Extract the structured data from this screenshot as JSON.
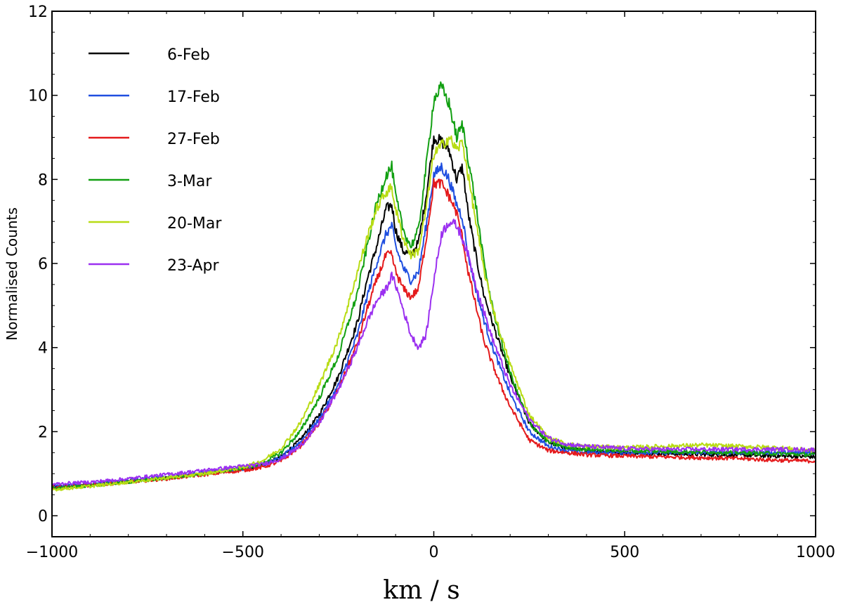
{
  "chart_data": {
    "type": "line",
    "title": "",
    "xlabel": "km / s",
    "ylabel": "Normalised Counts",
    "xlim": [
      -1000,
      1000
    ],
    "ylim": [
      -0.5,
      12
    ],
    "xticks": [
      -1000,
      -500,
      0,
      500,
      1000
    ],
    "xtick_labels": [
      "−1000",
      "−500",
      "0",
      "500",
      "1000"
    ],
    "yticks": [
      0,
      2,
      4,
      6,
      8,
      10,
      12
    ],
    "ytick_labels": [
      "0",
      "2",
      "4",
      "6",
      "8",
      "10",
      "12"
    ],
    "grid": false,
    "legend_position": "top-left",
    "x": [
      -1000,
      -900,
      -800,
      -700,
      -600,
      -500,
      -450,
      -400,
      -350,
      -300,
      -250,
      -200,
      -175,
      -150,
      -125,
      -110,
      -100,
      -80,
      -60,
      -40,
      -20,
      0,
      20,
      40,
      60,
      75,
      90,
      110,
      130,
      150,
      175,
      200,
      250,
      300,
      350,
      400,
      500,
      600,
      700,
      800,
      900,
      1000
    ],
    "series": [
      {
        "name": "6-Feb",
        "color": "#000000",
        "values": [
          0.68,
          0.73,
          0.82,
          0.9,
          1.0,
          1.12,
          1.2,
          1.4,
          1.8,
          2.4,
          3.3,
          4.6,
          5.6,
          6.4,
          7.3,
          7.4,
          6.8,
          6.3,
          6.2,
          6.5,
          7.6,
          9.0,
          8.9,
          8.7,
          8.0,
          8.3,
          7.2,
          6.2,
          5.3,
          4.7,
          4.0,
          3.3,
          2.2,
          1.75,
          1.6,
          1.55,
          1.5,
          1.48,
          1.46,
          1.44,
          1.42,
          1.4
        ]
      },
      {
        "name": "17-Feb",
        "color": "#1f4fe0",
        "values": [
          0.7,
          0.75,
          0.84,
          0.92,
          1.02,
          1.12,
          1.2,
          1.38,
          1.75,
          2.3,
          3.1,
          4.3,
          5.2,
          6.0,
          6.7,
          6.9,
          6.4,
          5.9,
          5.6,
          5.8,
          6.9,
          8.1,
          8.3,
          8.0,
          7.4,
          7.1,
          6.2,
          5.4,
          4.7,
          4.1,
          3.5,
          2.9,
          2.0,
          1.65,
          1.55,
          1.5,
          1.5,
          1.5,
          1.5,
          1.5,
          1.5,
          1.5
        ]
      },
      {
        "name": "27-Feb",
        "color": "#e41a1c",
        "values": [
          0.68,
          0.72,
          0.8,
          0.88,
          0.98,
          1.08,
          1.15,
          1.3,
          1.65,
          2.2,
          3.0,
          4.1,
          4.9,
          5.6,
          6.2,
          6.2,
          5.8,
          5.4,
          5.2,
          5.4,
          6.6,
          7.9,
          7.9,
          7.6,
          7.2,
          6.6,
          5.8,
          5.0,
          4.2,
          3.7,
          3.1,
          2.6,
          1.8,
          1.55,
          1.5,
          1.45,
          1.42,
          1.4,
          1.38,
          1.36,
          1.32,
          1.3
        ]
      },
      {
        "name": "3-Mar",
        "color": "#12a012",
        "values": [
          0.65,
          0.72,
          0.8,
          0.9,
          1.0,
          1.14,
          1.24,
          1.5,
          2.0,
          2.8,
          3.8,
          5.3,
          6.4,
          7.4,
          8.1,
          8.3,
          7.6,
          6.8,
          6.4,
          6.8,
          8.3,
          9.9,
          10.2,
          9.8,
          9.0,
          9.3,
          8.5,
          7.4,
          6.1,
          5.1,
          4.2,
          3.4,
          2.2,
          1.75,
          1.62,
          1.58,
          1.55,
          1.53,
          1.52,
          1.5,
          1.48,
          1.45
        ]
      },
      {
        "name": "20-Mar",
        "color": "#b8dc14",
        "values": [
          0.62,
          0.7,
          0.8,
          0.9,
          1.0,
          1.15,
          1.3,
          1.6,
          2.2,
          3.1,
          4.2,
          5.8,
          6.6,
          7.3,
          7.7,
          7.8,
          7.3,
          6.6,
          6.2,
          6.3,
          7.3,
          8.6,
          8.8,
          9.0,
          8.7,
          8.9,
          8.1,
          7.0,
          5.9,
          5.1,
          4.3,
          3.6,
          2.4,
          1.85,
          1.7,
          1.65,
          1.62,
          1.65,
          1.68,
          1.65,
          1.62,
          1.55
        ]
      },
      {
        "name": "23-Apr",
        "color": "#9b30f0",
        "values": [
          0.75,
          0.8,
          0.88,
          0.98,
          1.08,
          1.18,
          1.22,
          1.35,
          1.65,
          2.2,
          3.0,
          4.0,
          4.6,
          5.1,
          5.4,
          5.7,
          5.5,
          4.9,
          4.3,
          4.0,
          4.3,
          5.6,
          6.7,
          7.0,
          6.9,
          6.6,
          6.2,
          5.5,
          4.9,
          4.3,
          3.7,
          3.1,
          2.3,
          1.85,
          1.7,
          1.65,
          1.6,
          1.58,
          1.58,
          1.58,
          1.58,
          1.57
        ]
      }
    ]
  }
}
